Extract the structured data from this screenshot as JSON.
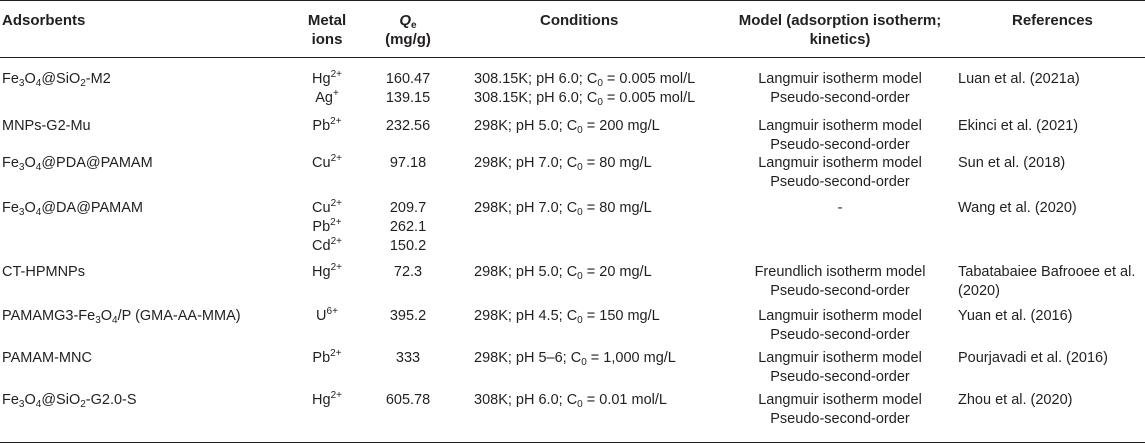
{
  "headers": {
    "adsorbents": "Adsorbents",
    "metal_ions_line1": "Metal",
    "metal_ions_line2": "ions",
    "qe_symbol": "Q",
    "qe_subscript": "e",
    "qe_unit": "(mg/g)",
    "conditions": "Conditions",
    "model_line1": "Model (adsorption isotherm;",
    "model_line2": "kinetics)",
    "references": "References"
  },
  "rows": [
    {
      "adsorbent": [
        [
          "Fe",
          ""
        ],
        [
          "3",
          "sub"
        ],
        [
          "O",
          ""
        ],
        [
          "4",
          "sub"
        ],
        [
          "@SiO",
          ""
        ],
        [
          "2",
          "sub"
        ],
        [
          "-M2",
          ""
        ]
      ],
      "ions": [
        [
          [
            "Hg",
            ""
          ],
          [
            "2+",
            "sup"
          ]
        ],
        [
          [
            "Ag",
            ""
          ],
          [
            "+",
            "sup"
          ]
        ]
      ],
      "qe": [
        "160.47",
        "139.15"
      ],
      "conditions": [
        [
          [
            "308.15K; pH 6.0; C",
            ""
          ],
          [
            "0",
            "sub"
          ],
          [
            " = 0.005 mol/L",
            ""
          ]
        ],
        [
          [
            "308.15K; pH 6.0; C",
            ""
          ],
          [
            "0",
            "sub"
          ],
          [
            " = 0.005 mol/L",
            ""
          ]
        ]
      ],
      "model": [
        "Langmuir isotherm model",
        "Pseudo-second-order"
      ],
      "reference": [
        "Luan et al. (2021a)"
      ]
    },
    {
      "adsorbent": [
        [
          "MNPs-G2-Mu",
          ""
        ]
      ],
      "ions": [
        [
          [
            "Pb",
            ""
          ],
          [
            "2+",
            "sup"
          ]
        ]
      ],
      "qe": [
        "232.56"
      ],
      "conditions": [
        [
          [
            "298K; pH 5.0; C",
            ""
          ],
          [
            "0",
            "sub"
          ],
          [
            " = 200 mg/L",
            ""
          ]
        ]
      ],
      "model": [
        "Langmuir isotherm model",
        "Pseudo-second-order"
      ],
      "reference": [
        "Ekinci et al. (2021)"
      ]
    },
    {
      "adsorbent": [
        [
          "Fe",
          ""
        ],
        [
          "3",
          "sub"
        ],
        [
          "O",
          ""
        ],
        [
          "4",
          "sub"
        ],
        [
          "@PDA@PAMAM",
          ""
        ]
      ],
      "ions": [
        [
          [
            "Cu",
            ""
          ],
          [
            "2+",
            "sup"
          ]
        ]
      ],
      "qe": [
        "97.18"
      ],
      "conditions": [
        [
          [
            "298K; pH 7.0; C",
            ""
          ],
          [
            "0",
            "sub"
          ],
          [
            " = 80 mg/L",
            ""
          ]
        ]
      ],
      "model": [
        "Langmuir isotherm model",
        "Pseudo-second-order"
      ],
      "reference": [
        "Sun et al. (2018)"
      ]
    },
    {
      "adsorbent": [
        [
          "Fe",
          ""
        ],
        [
          "3",
          "sub"
        ],
        [
          "O",
          ""
        ],
        [
          "4",
          "sub"
        ],
        [
          "@DA@PAMAM",
          ""
        ]
      ],
      "ions": [
        [
          [
            "Cu",
            ""
          ],
          [
            "2+",
            "sup"
          ]
        ],
        [
          [
            "Pb",
            ""
          ],
          [
            "2+",
            "sup"
          ]
        ],
        [
          [
            "Cd",
            ""
          ],
          [
            "2+",
            "sup"
          ]
        ]
      ],
      "qe": [
        "209.7",
        "262.1",
        "150.2"
      ],
      "conditions": [
        [
          [
            "298K; pH 7.0; C",
            ""
          ],
          [
            "0",
            "sub"
          ],
          [
            " = 80 mg/L",
            ""
          ]
        ]
      ],
      "model": [
        "-"
      ],
      "reference": [
        "Wang et al. (2020)"
      ]
    },
    {
      "adsorbent": [
        [
          "CT-HPMNPs",
          ""
        ]
      ],
      "ions": [
        [
          [
            "Hg",
            ""
          ],
          [
            "2+",
            "sup"
          ]
        ]
      ],
      "qe": [
        "72.3"
      ],
      "conditions": [
        [
          [
            "298K; pH 5.0; C",
            ""
          ],
          [
            "0",
            "sub"
          ],
          [
            " = 20 mg/L",
            ""
          ]
        ]
      ],
      "model": [
        "Freundlich isotherm model",
        "Pseudo-second-order"
      ],
      "reference": [
        "Tabatabaiee Bafrooee et al.",
        "(2020)"
      ]
    },
    {
      "adsorbent": [
        [
          "PAMAMG3-Fe",
          ""
        ],
        [
          "3",
          "sub"
        ],
        [
          "O",
          ""
        ],
        [
          "4",
          "sub"
        ],
        [
          "/P (GMA-AA-MMA)",
          ""
        ]
      ],
      "ions": [
        [
          [
            "U",
            ""
          ],
          [
            "6+",
            "sup"
          ]
        ]
      ],
      "qe": [
        "395.2"
      ],
      "conditions": [
        [
          [
            "298K; pH 4.5; C",
            ""
          ],
          [
            "0",
            "sub"
          ],
          [
            " = 150 mg/L",
            ""
          ]
        ]
      ],
      "model": [
        "Langmuir isotherm model",
        "Pseudo-second-order"
      ],
      "reference": [
        "Yuan et al. (2016)"
      ]
    },
    {
      "adsorbent": [
        [
          "PAMAM-MNC",
          ""
        ]
      ],
      "ions": [
        [
          [
            "Pb",
            ""
          ],
          [
            "2+",
            "sup"
          ]
        ]
      ],
      "qe": [
        "333"
      ],
      "conditions": [
        [
          [
            "298K; pH 5–6; C",
            ""
          ],
          [
            "0",
            "sub"
          ],
          [
            " = 1,000 mg/L",
            ""
          ]
        ]
      ],
      "model": [
        "Langmuir isotherm model",
        "Pseudo-second-order"
      ],
      "reference": [
        "Pourjavadi et al. (2016)"
      ]
    },
    {
      "adsorbent": [
        [
          "Fe",
          ""
        ],
        [
          "3",
          "sub"
        ],
        [
          "O",
          ""
        ],
        [
          "4",
          "sub"
        ],
        [
          "@SiO",
          ""
        ],
        [
          "2",
          "sub"
        ],
        [
          "-G2.0-S",
          ""
        ]
      ],
      "ions": [
        [
          [
            "Hg",
            ""
          ],
          [
            "2+",
            "sup"
          ]
        ]
      ],
      "qe": [
        "605.78"
      ],
      "conditions": [
        [
          [
            "308K; pH 6.0; C",
            ""
          ],
          [
            "0",
            "sub"
          ],
          [
            " = 0.01 mol/L",
            ""
          ]
        ]
      ],
      "model": [
        "Langmuir isotherm model",
        "Pseudo-second-order"
      ],
      "reference": [
        "Zhou et al. (2020)"
      ]
    }
  ]
}
